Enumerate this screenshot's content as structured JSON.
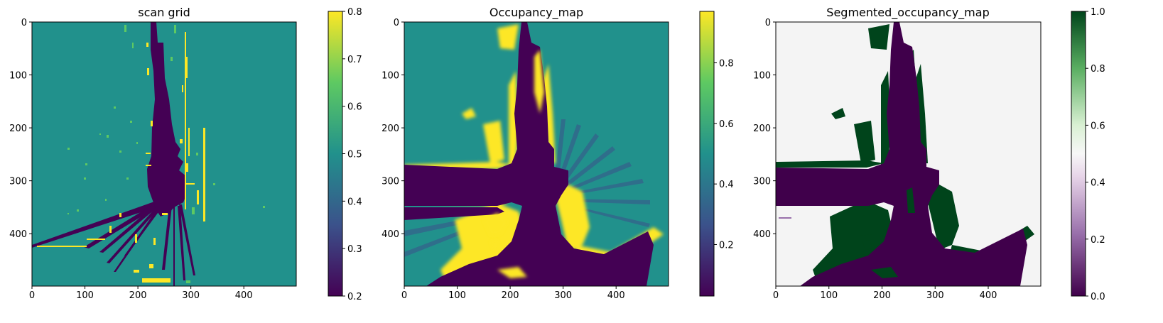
{
  "chart_data": [
    {
      "type": "heatmap",
      "title": "scan grid",
      "colormap": "viridis",
      "xlim": [
        0,
        499
      ],
      "ylim": [
        499,
        0
      ],
      "xticks": [
        "0",
        "100",
        "200",
        "300",
        "400"
      ],
      "yticks": [
        "0",
        "100",
        "200",
        "300",
        "400"
      ],
      "colorbar": {
        "vmin": 0.2,
        "vmax": 0.8,
        "ticks": [
          "0.2",
          "0.3",
          "0.4",
          "0.5",
          "0.6",
          "0.7",
          "0.8"
        ]
      },
      "background_value": 0.5
    },
    {
      "type": "heatmap",
      "title": "Occupancy_map",
      "colormap": "viridis",
      "xlim": [
        0,
        499
      ],
      "ylim": [
        499,
        0
      ],
      "xticks": [
        "0",
        "100",
        "200",
        "300",
        "400"
      ],
      "yticks": [
        "0",
        "100",
        "200",
        "300",
        "400"
      ],
      "colorbar": {
        "vmin": 0.03,
        "vmax": 0.97,
        "ticks": [
          "0.2",
          "0.4",
          "0.6",
          "0.8"
        ]
      },
      "background_value": 0.5
    },
    {
      "type": "heatmap",
      "title": "Segmented_occupancy_map",
      "colormap": "PRGn",
      "xlim": [
        0,
        499
      ],
      "ylim": [
        499,
        0
      ],
      "xticks": [
        "0",
        "100",
        "200",
        "300",
        "400"
      ],
      "yticks": [
        "0",
        "100",
        "200",
        "300",
        "400"
      ],
      "colorbar": {
        "vmin": 0.0,
        "vmax": 1.0,
        "ticks": [
          "0.0",
          "0.2",
          "0.4",
          "0.6",
          "0.8",
          "1.0"
        ]
      },
      "background_value": 0.5
    }
  ],
  "colors": {
    "viridis": [
      "#440154",
      "#3b528b",
      "#21918c",
      "#5ec962",
      "#fde725"
    ],
    "prgn": [
      "#40004b",
      "#9970ab",
      "#f7f7f7",
      "#5aae61",
      "#00441b"
    ]
  }
}
